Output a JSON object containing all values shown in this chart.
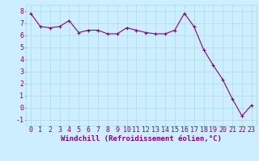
{
  "x": [
    0,
    1,
    2,
    3,
    4,
    5,
    6,
    7,
    8,
    9,
    10,
    11,
    12,
    13,
    14,
    15,
    16,
    17,
    18,
    19,
    20,
    21,
    22,
    23
  ],
  "y": [
    7.8,
    6.7,
    6.6,
    6.7,
    7.2,
    6.2,
    6.4,
    6.4,
    6.1,
    6.1,
    6.6,
    6.4,
    6.2,
    6.1,
    6.1,
    6.4,
    7.8,
    6.7,
    4.8,
    3.5,
    2.3,
    0.7,
    -0.7,
    0.2
  ],
  "line_color": "#880088",
  "marker": "+",
  "marker_size": 3,
  "bg_color": "#cceeff",
  "grid_color": "#aadddd",
  "xlabel": "Windchill (Refroidissement éolien,°C)",
  "xlim": [
    -0.5,
    23.5
  ],
  "ylim": [
    -1.5,
    8.5
  ],
  "yticks": [
    -1,
    0,
    1,
    2,
    3,
    4,
    5,
    6,
    7,
    8
  ],
  "xtick_labels": [
    "0",
    "1",
    "2",
    "3",
    "4",
    "5",
    "6",
    "7",
    "8",
    "9",
    "10",
    "11",
    "12",
    "13",
    "14",
    "15",
    "16",
    "17",
    "18",
    "19",
    "20",
    "21",
    "22",
    "23"
  ],
  "xlabel_fontsize": 6.5,
  "tick_fontsize": 6,
  "label_color": "#880088",
  "lw": 0.8,
  "marker_ew": 0.8
}
